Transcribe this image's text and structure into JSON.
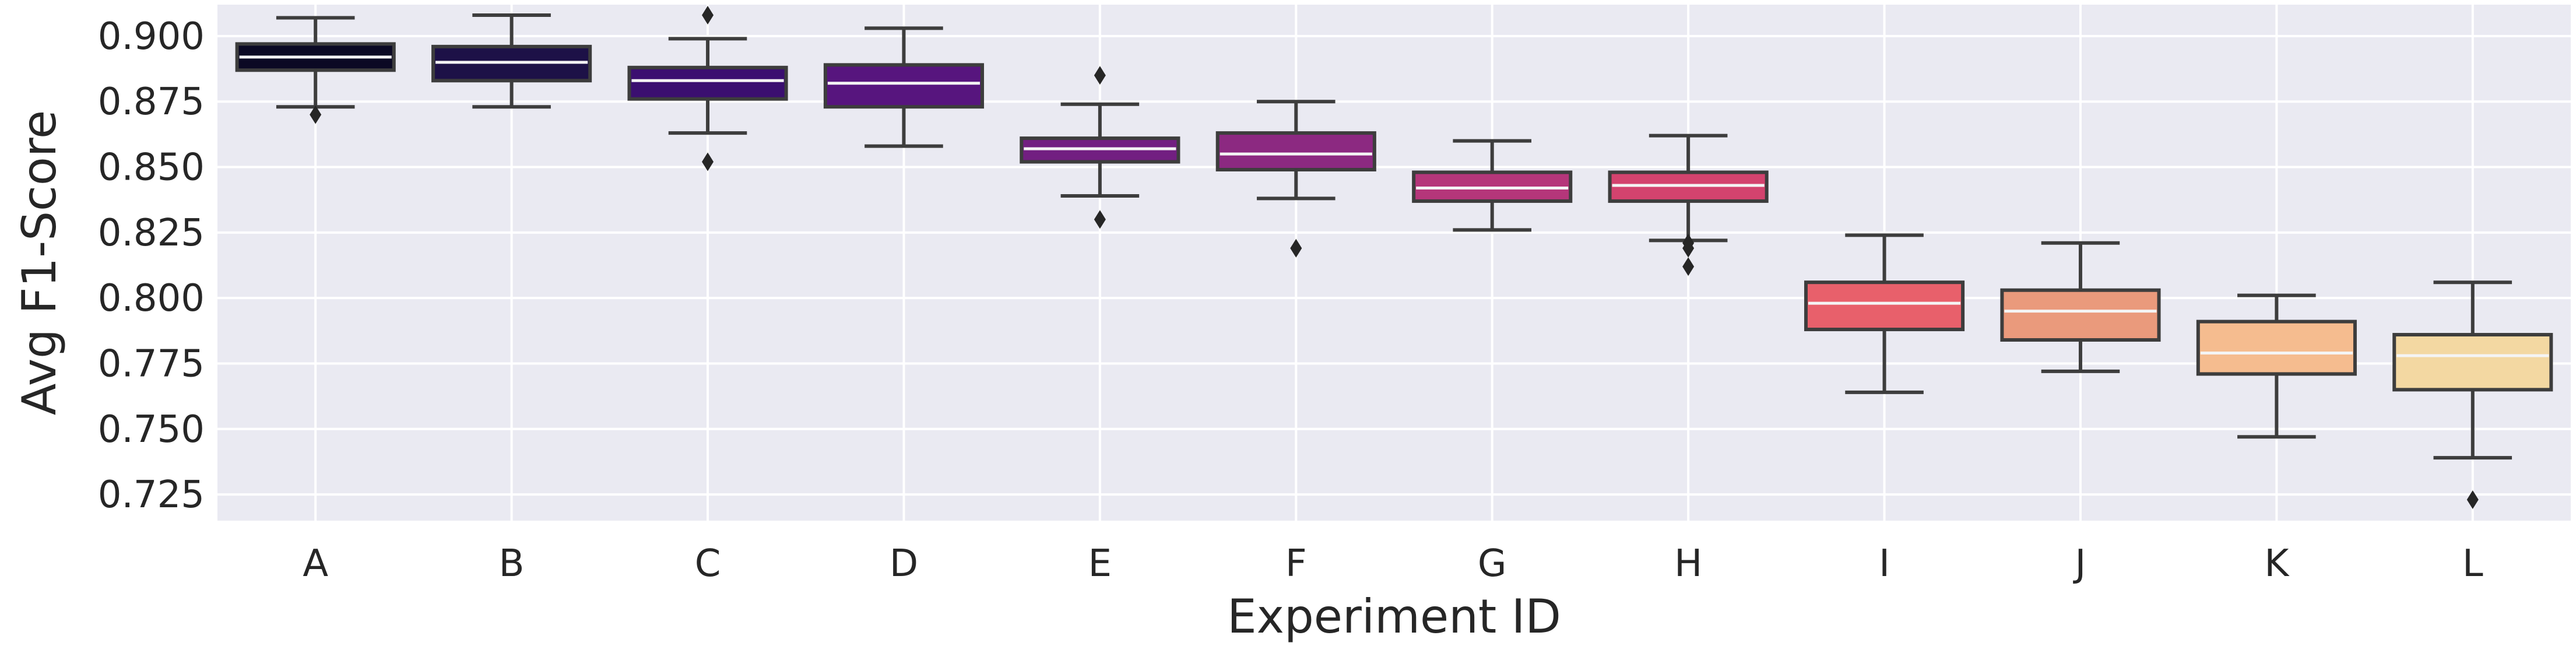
{
  "chart_data": {
    "type": "box",
    "xlabel": "Experiment ID",
    "ylabel": "Avg F1-Score",
    "ylim": [
      0.715,
      0.912
    ],
    "yticks": [
      "0.725",
      "0.750",
      "0.775",
      "0.800",
      "0.825",
      "0.850",
      "0.875",
      "0.900"
    ],
    "grid": true,
    "background_color": "#eaeaf2",
    "categories": [
      "A",
      "B",
      "C",
      "D",
      "E",
      "F",
      "G",
      "H",
      "I",
      "J",
      "K",
      "L"
    ],
    "boxes": [
      {
        "category": "A",
        "whisker_low": 0.873,
        "q1": 0.887,
        "median": 0.892,
        "q3": 0.897,
        "whisker_high": 0.907,
        "outliers": [
          0.87
        ],
        "color": "#0b0924"
      },
      {
        "category": "B",
        "whisker_low": 0.873,
        "q1": 0.883,
        "median": 0.89,
        "q3": 0.896,
        "whisker_high": 0.908,
        "outliers": [],
        "color": "#1d1147"
      },
      {
        "category": "C",
        "whisker_low": 0.863,
        "q1": 0.876,
        "median": 0.883,
        "q3": 0.888,
        "whisker_high": 0.899,
        "outliers": [
          0.908,
          0.852
        ],
        "color": "#3b0f70"
      },
      {
        "category": "D",
        "whisker_low": 0.858,
        "q1": 0.873,
        "median": 0.882,
        "q3": 0.889,
        "whisker_high": 0.903,
        "outliers": [],
        "color": "#57157e"
      },
      {
        "category": "E",
        "whisker_low": 0.839,
        "q1": 0.852,
        "median": 0.857,
        "q3": 0.861,
        "whisker_high": 0.874,
        "outliers": [
          0.885,
          0.83
        ],
        "color": "#721f81"
      },
      {
        "category": "F",
        "whisker_low": 0.838,
        "q1": 0.849,
        "median": 0.855,
        "q3": 0.863,
        "whisker_high": 0.875,
        "outliers": [
          0.819
        ],
        "color": "#8c2981"
      },
      {
        "category": "G",
        "whisker_low": 0.826,
        "q1": 0.837,
        "median": 0.842,
        "q3": 0.848,
        "whisker_high": 0.86,
        "outliers": [],
        "color": "#b5367a"
      },
      {
        "category": "H",
        "whisker_low": 0.822,
        "q1": 0.837,
        "median": 0.843,
        "q3": 0.848,
        "whisker_high": 0.862,
        "outliers": [
          0.821,
          0.819,
          0.812
        ],
        "color": "#d3436e"
      },
      {
        "category": "I",
        "whisker_low": 0.764,
        "q1": 0.788,
        "median": 0.798,
        "q3": 0.806,
        "whisker_high": 0.824,
        "outliers": [],
        "color": "#e8606b"
      },
      {
        "category": "J",
        "whisker_low": 0.772,
        "q1": 0.784,
        "median": 0.795,
        "q3": 0.803,
        "whisker_high": 0.821,
        "outliers": [],
        "color": "#ea9a7c"
      },
      {
        "category": "K",
        "whisker_low": 0.747,
        "q1": 0.771,
        "median": 0.779,
        "q3": 0.791,
        "whisker_high": 0.801,
        "outliers": [],
        "color": "#f5bc8f"
      },
      {
        "category": "L",
        "whisker_low": 0.739,
        "q1": 0.765,
        "median": 0.778,
        "q3": 0.786,
        "whisker_high": 0.806,
        "outliers": [
          0.723
        ],
        "color": "#f3d8a2"
      }
    ]
  }
}
